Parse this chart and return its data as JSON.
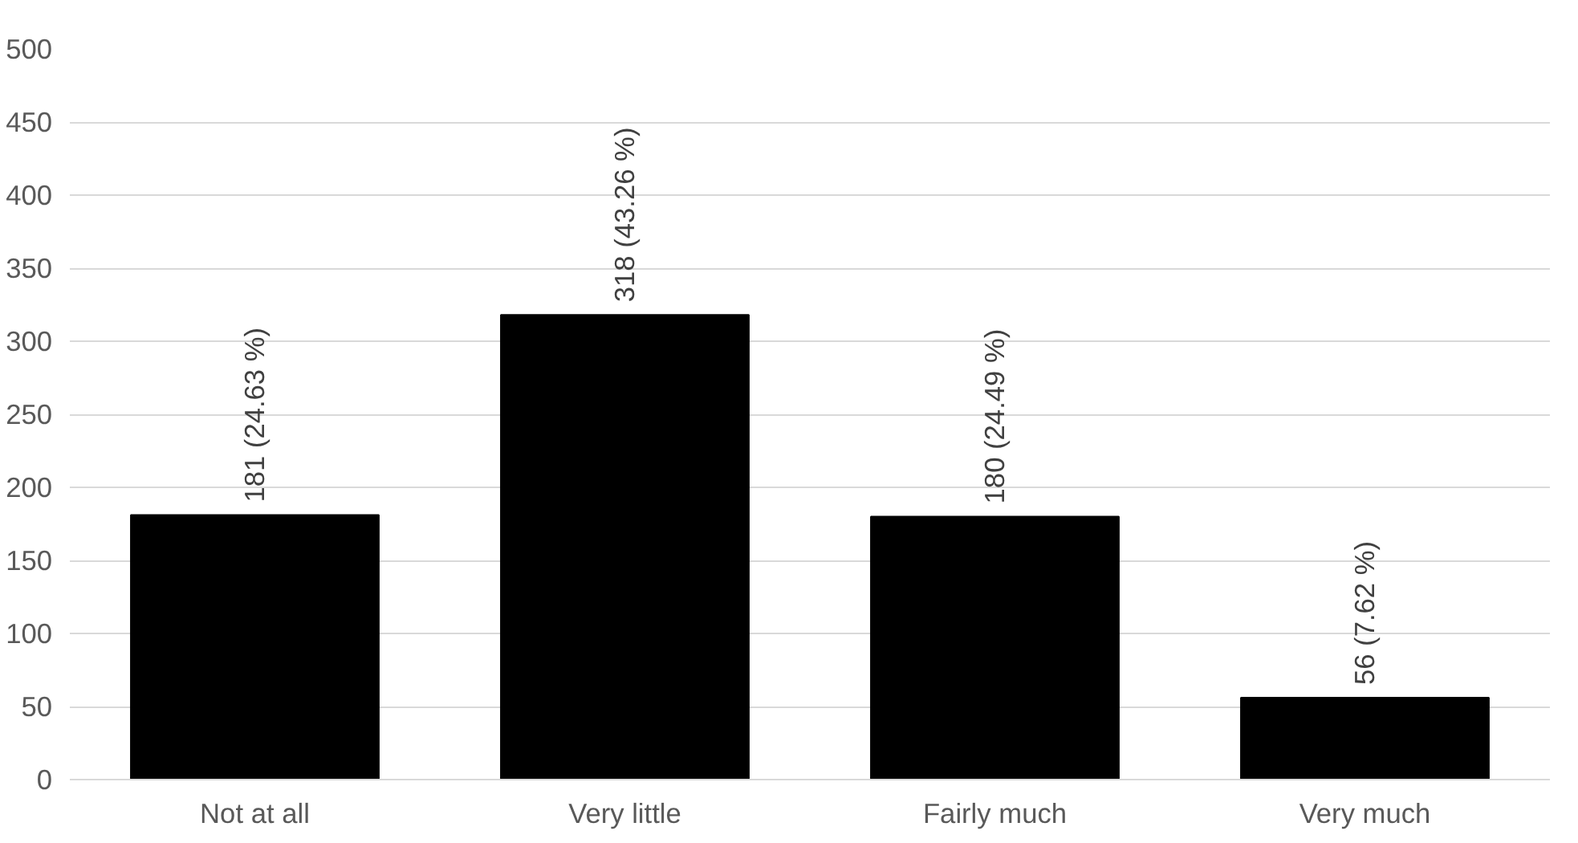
{
  "chart_data": {
    "type": "bar",
    "categories": [
      "Not at all",
      "Very little",
      "Fairly much",
      "Very much"
    ],
    "values": [
      181,
      318,
      180,
      56
    ],
    "value_labels": [
      "181 (24.63 %)",
      "318 (43.26 %)",
      "180 (24.49 %)",
      "56 (7.62 %)"
    ],
    "color": "#000000",
    "ylim": [
      0,
      500
    ],
    "yticks": [
      0,
      50,
      100,
      150,
      200,
      250,
      300,
      350,
      400,
      450,
      500
    ],
    "grid": "y"
  }
}
